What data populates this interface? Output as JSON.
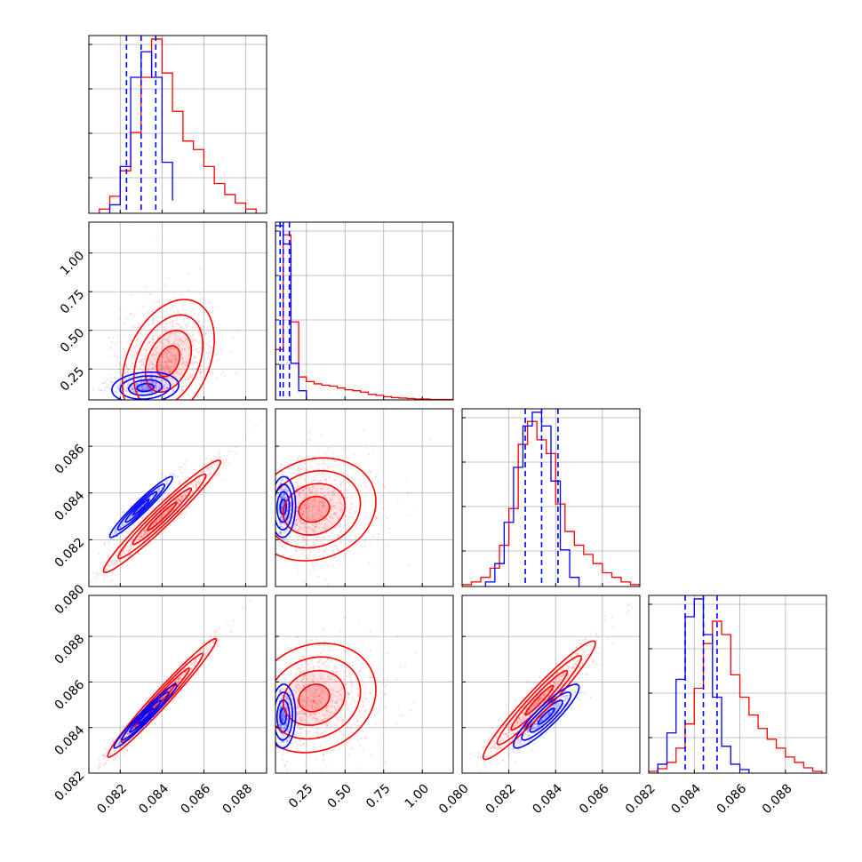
{
  "chart_data": {
    "type": "corner",
    "colors": {
      "series_a": "#0000ff",
      "series_b": "#ff0000",
      "grid": "#b0b0b0",
      "axis": "#000000"
    },
    "parameters": [
      {
        "range": [
          0.0805,
          0.089
        ],
        "ticks": [
          "0.082",
          "0.084",
          "0.086",
          "0.088"
        ],
        "tick_values": [
          0.082,
          0.084,
          0.086,
          0.088
        ]
      },
      {
        "range": [
          0.05,
          1.2
        ],
        "ticks": [
          "0.25",
          "0.50",
          "0.75",
          "1.00"
        ],
        "tick_values": [
          0.25,
          0.5,
          0.75,
          1.0
        ]
      },
      {
        "range": [
          0.08,
          0.0876
        ],
        "ticks": [
          "0.080",
          "0.082",
          "0.084",
          "0.086"
        ],
        "tick_values": [
          0.08,
          0.082,
          0.084,
          0.086
        ]
      },
      {
        "range": [
          0.082,
          0.0898
        ],
        "ticks": [
          "0.082",
          "0.084",
          "0.086",
          "0.088"
        ],
        "tick_values": [
          0.082,
          0.084,
          0.086,
          0.088
        ]
      }
    ],
    "marginals": [
      {
        "param": 0,
        "blue_edges": [
          0.0815,
          0.082,
          0.0825,
          0.083,
          0.0835,
          0.084,
          0.0845
        ],
        "blue_counts": [
          0.1,
          0.55,
          1.6,
          1.9,
          1.6,
          0.6,
          0.15
        ],
        "red_edges": [
          0.081,
          0.0815,
          0.082,
          0.0825,
          0.083,
          0.0835,
          0.084,
          0.0845,
          0.085,
          0.0855,
          0.086,
          0.0865,
          0.087,
          0.0875,
          0.088,
          0.0885
        ],
        "red_counts": [
          0.05,
          0.2,
          0.5,
          0.95,
          1.6,
          2.05,
          1.65,
          1.2,
          0.85,
          0.75,
          0.55,
          0.35,
          0.22,
          0.12,
          0.05
        ],
        "quantiles": [
          0.0823,
          0.083,
          0.0837
        ]
      },
      {
        "param": 1,
        "blue_edges": [
          0.05,
          0.1,
          0.15,
          0.2,
          0.25
        ],
        "blue_counts": [
          3.8,
          3.4,
          0.8,
          0.2
        ],
        "red_edges": [
          0.05,
          0.1,
          0.15,
          0.2,
          0.25,
          0.3,
          0.35,
          0.4,
          0.45,
          0.5,
          0.55,
          0.6,
          0.65,
          0.7,
          0.75,
          0.8,
          0.85,
          0.9,
          0.95,
          1.0,
          1.05,
          1.1,
          1.15,
          1.2
        ],
        "red_counts": [
          1.1,
          3.6,
          1.7,
          0.5,
          0.4,
          0.35,
          0.32,
          0.3,
          0.26,
          0.22,
          0.2,
          0.17,
          0.12,
          0.1,
          0.07,
          0.05,
          0.04,
          0.03,
          0.02,
          0.02,
          0.01,
          0.01,
          0.01
        ],
        "quantiles": [
          0.08,
          0.1,
          0.14
        ]
      },
      {
        "param": 2,
        "blue_edges": [
          0.081,
          0.0814,
          0.0818,
          0.0822,
          0.0826,
          0.083,
          0.0834,
          0.0838,
          0.0842,
          0.0846,
          0.085
        ],
        "blue_counts": [
          0.05,
          0.25,
          0.7,
          1.3,
          1.75,
          1.9,
          1.75,
          1.15,
          0.4,
          0.1
        ],
        "red_edges": [
          0.08,
          0.0804,
          0.0808,
          0.0812,
          0.0816,
          0.082,
          0.0824,
          0.0828,
          0.0832,
          0.0836,
          0.084,
          0.0844,
          0.0848,
          0.0852,
          0.0856,
          0.086,
          0.0864,
          0.0868,
          0.0872,
          0.0876
        ],
        "red_counts": [
          0.02,
          0.05,
          0.1,
          0.2,
          0.45,
          0.85,
          1.55,
          1.8,
          1.6,
          1.45,
          0.9,
          0.6,
          0.45,
          0.35,
          0.25,
          0.15,
          0.1,
          0.05,
          0.02
        ],
        "quantiles": [
          0.0827,
          0.0834,
          0.0841
        ]
      },
      {
        "param": 3,
        "blue_edges": [
          0.0824,
          0.0828,
          0.0832,
          0.0836,
          0.084,
          0.0844,
          0.0848,
          0.0852,
          0.0856,
          0.086,
          0.0864
        ],
        "blue_counts": [
          0.1,
          0.45,
          1.05,
          1.75,
          1.95,
          1.55,
          0.85,
          0.3,
          0.1,
          0.04
        ],
        "red_edges": [
          0.082,
          0.0824,
          0.0828,
          0.0832,
          0.0836,
          0.084,
          0.0844,
          0.0848,
          0.0852,
          0.0856,
          0.086,
          0.0864,
          0.0868,
          0.0872,
          0.0876,
          0.088,
          0.0884,
          0.0888,
          0.0892,
          0.0896
        ],
        "red_counts": [
          0.02,
          0.05,
          0.12,
          0.28,
          0.55,
          0.95,
          1.45,
          1.7,
          1.55,
          1.1,
          0.85,
          0.65,
          0.5,
          0.38,
          0.28,
          0.18,
          0.12,
          0.06,
          0.02
        ],
        "quantiles": [
          0.0836,
          0.0844,
          0.085
        ]
      }
    ],
    "joints": [
      {
        "x": 0,
        "y": 1,
        "blue": {
          "cx": 0.0832,
          "cy": 0.13,
          "sx": 0.0008,
          "sy": 0.05,
          "rho": 0.15
        },
        "red": {
          "cx": 0.0843,
          "cy": 0.3,
          "sx": 0.0011,
          "sy": 0.2,
          "rho": 0.35
        }
      },
      {
        "x": 0,
        "y": 2,
        "blue": {
          "cx": 0.083,
          "cy": 0.0834,
          "sx": 0.00075,
          "sy": 0.00065,
          "rho": 0.96
        },
        "red": {
          "cx": 0.084,
          "cy": 0.083,
          "sx": 0.0014,
          "sy": 0.0012,
          "rho": 0.97
        }
      },
      {
        "x": 1,
        "y": 2,
        "blue": {
          "cx": 0.1,
          "cy": 0.0834,
          "sx": 0.04,
          "sy": 0.00065,
          "rho": 0.05
        },
        "red": {
          "cx": 0.3,
          "cy": 0.0833,
          "sx": 0.2,
          "sy": 0.0011,
          "rho": 0.15
        }
      },
      {
        "x": 0,
        "y": 3,
        "blue": {
          "cx": 0.0832,
          "cy": 0.0845,
          "sx": 0.00075,
          "sy": 0.0007,
          "rho": 0.97
        },
        "red": {
          "cx": 0.084,
          "cy": 0.0853,
          "sx": 0.0013,
          "sy": 0.0013,
          "rho": 0.98
        }
      },
      {
        "x": 1,
        "y": 3,
        "blue": {
          "cx": 0.1,
          "cy": 0.0845,
          "sx": 0.04,
          "sy": 0.0007,
          "rho": 0.05
        },
        "red": {
          "cx": 0.3,
          "cy": 0.0853,
          "sx": 0.2,
          "sy": 0.0012,
          "rho": 0.15
        }
      },
      {
        "x": 2,
        "y": 3,
        "blue": {
          "cx": 0.0836,
          "cy": 0.0845,
          "sx": 0.0007,
          "sy": 0.0007,
          "rho": 0.9
        },
        "red": {
          "cx": 0.0833,
          "cy": 0.0852,
          "sx": 0.0012,
          "sy": 0.0013,
          "rho": 0.96
        }
      }
    ],
    "contour_levels_sigma": [
      0.5,
      1.0,
      1.5,
      2.0
    ],
    "grid": true
  }
}
